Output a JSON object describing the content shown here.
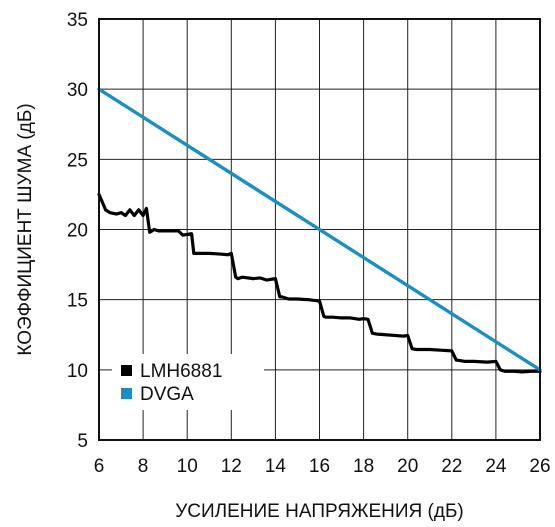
{
  "chart_data": {
    "type": "line",
    "xlabel": "УСИЛЕНИЕ НАПРЯЖЕНИЯ (дБ)",
    "ylabel": "КОЭФФИЦИЕНТ ШУМА (дБ)",
    "xlim": [
      6,
      26
    ],
    "ylim": [
      5,
      35
    ],
    "xticks": [
      6,
      8,
      10,
      12,
      14,
      16,
      18,
      20,
      22,
      24,
      26
    ],
    "yticks": [
      5,
      10,
      15,
      20,
      25,
      30,
      35
    ],
    "grid": true,
    "legend_position": "bottom-left",
    "series": [
      {
        "name": "LMH6881",
        "color": "#000000",
        "x": [
          6.0,
          6.3,
          6.5,
          6.8,
          7.0,
          7.2,
          7.4,
          7.6,
          7.8,
          8.0,
          8.15,
          8.3,
          8.5,
          8.7,
          9.0,
          9.6,
          9.8,
          10.2,
          10.3,
          10.5,
          11.0,
          11.5,
          11.85,
          12.0,
          12.2,
          12.3,
          12.5,
          13.0,
          13.3,
          13.6,
          14.0,
          14.2,
          14.3,
          14.6,
          15.0,
          15.5,
          16.0,
          16.2,
          16.3,
          16.6,
          17.0,
          17.4,
          17.8,
          18.0,
          18.2,
          18.4,
          18.6,
          19.0,
          19.4,
          19.8,
          20.0,
          20.2,
          20.4,
          20.6,
          21.0,
          21.5,
          22.0,
          22.2,
          22.4,
          22.6,
          23.0,
          23.6,
          24.0,
          24.2,
          24.4,
          24.8,
          25.2,
          25.6,
          26.0
        ],
        "y": [
          22.5,
          21.4,
          21.2,
          21.1,
          21.2,
          21.0,
          21.4,
          21.0,
          21.4,
          21.0,
          21.5,
          19.8,
          20.0,
          19.9,
          19.9,
          19.9,
          19.6,
          19.7,
          18.3,
          18.3,
          18.3,
          18.25,
          18.2,
          18.3,
          16.6,
          16.5,
          16.6,
          16.5,
          16.55,
          16.4,
          16.5,
          15.2,
          15.2,
          15.05,
          15.05,
          15.0,
          14.9,
          13.8,
          13.75,
          13.75,
          13.7,
          13.7,
          13.6,
          13.65,
          13.6,
          12.6,
          12.55,
          12.5,
          12.45,
          12.4,
          12.45,
          11.5,
          11.45,
          11.45,
          11.45,
          11.4,
          11.35,
          10.7,
          10.65,
          10.6,
          10.6,
          10.55,
          10.6,
          10.0,
          9.9,
          9.9,
          9.85,
          9.9,
          9.9
        ]
      },
      {
        "name": "DVGA",
        "color": "#1a8fc4",
        "x": [
          6,
          26
        ],
        "y": [
          30,
          10
        ]
      }
    ]
  }
}
